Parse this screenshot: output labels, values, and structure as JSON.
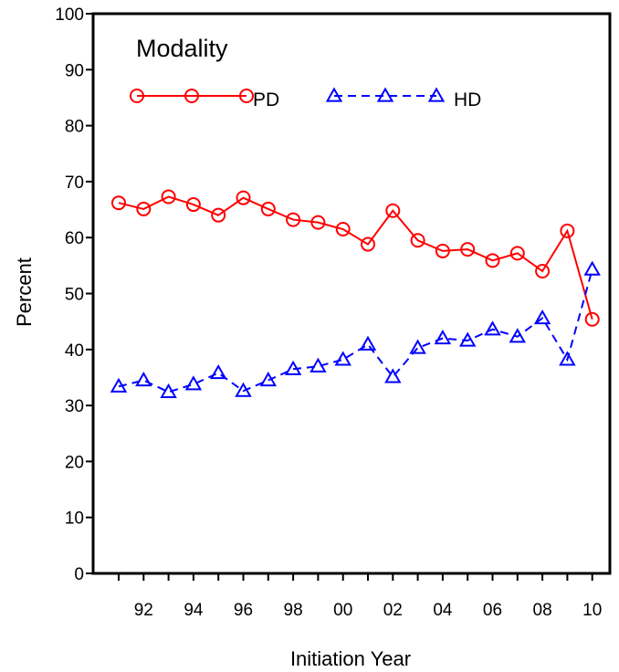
{
  "chart_data": {
    "type": "line",
    "xlabel": "Initiation Year",
    "ylabel": "Percent",
    "ylim": [
      0,
      100
    ],
    "yticks": [
      0,
      10,
      20,
      30,
      40,
      50,
      60,
      70,
      80,
      90,
      100
    ],
    "x": [
      "91",
      "92",
      "93",
      "94",
      "95",
      "96",
      "97",
      "98",
      "99",
      "00",
      "01",
      "02",
      "03",
      "04",
      "05",
      "06",
      "07",
      "08",
      "09",
      "10"
    ],
    "x_tick_labels": [
      "",
      "92",
      "",
      "94",
      "",
      "96",
      "",
      "98",
      "",
      "00",
      "",
      "02",
      "",
      "04",
      "",
      "06",
      "",
      "08",
      "",
      "10"
    ],
    "grid": false,
    "legend": {
      "title": "Modality",
      "placement": "top-left"
    },
    "series": [
      {
        "name": "PD",
        "color": "#ff0000",
        "line_style": "solid",
        "marker": "circle",
        "values": [
          66.2,
          65.1,
          67.3,
          65.9,
          64.0,
          67.1,
          65.1,
          63.2,
          62.7,
          61.5,
          58.8,
          64.8,
          59.5,
          57.6,
          57.9,
          55.9,
          57.2,
          54.0,
          61.2,
          45.4
        ]
      },
      {
        "name": "HD",
        "color": "#0000ff",
        "line_style": "dashed",
        "marker": "triangle",
        "values": [
          33.4,
          34.5,
          32.4,
          33.8,
          35.8,
          32.6,
          34.5,
          36.5,
          37.0,
          38.2,
          40.9,
          35.1,
          40.3,
          42.0,
          41.6,
          43.6,
          42.3,
          45.6,
          38.2,
          54.3
        ]
      }
    ]
  }
}
